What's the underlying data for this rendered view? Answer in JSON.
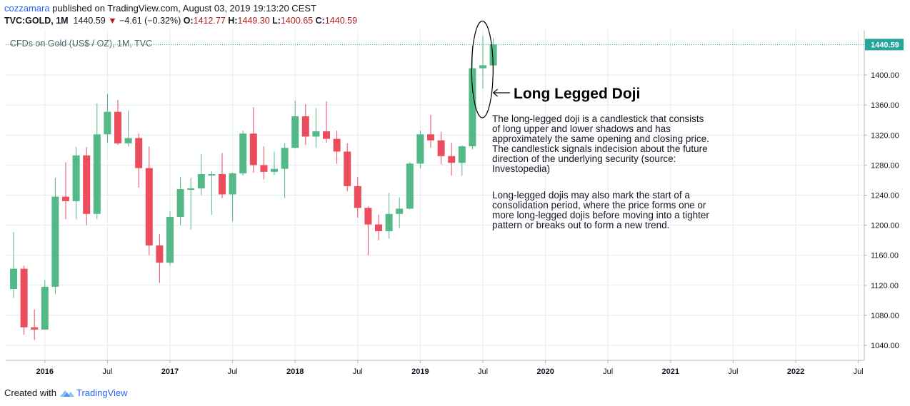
{
  "header": {
    "author": "cozzamara",
    "published_text": " published on TradingView.com, August 03, 2019 19:13:20 CEST",
    "symbol": "TVC:GOLD, 1M",
    "last": "1440.59",
    "change_arrow": "▼",
    "change": "−4.61 (−0.32%)",
    "o_label": "O:",
    "o_val": "1412.77",
    "h_label": "H:",
    "h_val": "1449.30",
    "l_label": "L:",
    "l_val": "1400.65",
    "c_label": "C:",
    "c_val": "1440.59"
  },
  "footer": {
    "prefix": "Created with",
    "brand": "TradingView"
  },
  "colors": {
    "up": "#53b987",
    "down": "#eb4d5c",
    "price_line": "#26a69a",
    "grid": "#e1ecf2"
  },
  "chart_data": {
    "type": "candlestick",
    "title": "CFDs on Gold (US$ / OZ), 1M, TVC",
    "ylim": [
      1020,
      1460
    ],
    "y_ticks": [
      1040,
      1080,
      1120,
      1160,
      1200,
      1240,
      1280,
      1320,
      1360,
      1400
    ],
    "last_price": 1440.59,
    "last_price_label": "1440.59",
    "x_ticks": [
      {
        "label": "2016",
        "index": 3,
        "bold": true
      },
      {
        "label": "Jul",
        "index": 9,
        "bold": false
      },
      {
        "label": "2017",
        "index": 15,
        "bold": true
      },
      {
        "label": "Jul",
        "index": 21,
        "bold": false
      },
      {
        "label": "2018",
        "index": 27,
        "bold": true
      },
      {
        "label": "Jul",
        "index": 33,
        "bold": false
      },
      {
        "label": "2019",
        "index": 39,
        "bold": true
      },
      {
        "label": "Jul",
        "index": 45,
        "bold": false
      },
      {
        "label": "2020",
        "index": 51,
        "bold": true
      },
      {
        "label": "Jul",
        "index": 57,
        "bold": false
      },
      {
        "label": "2021",
        "index": 63,
        "bold": true
      },
      {
        "label": "Jul",
        "index": 69,
        "bold": false
      },
      {
        "label": "2022",
        "index": 75,
        "bold": true
      },
      {
        "label": "Jul",
        "index": 81,
        "bold": false
      }
    ],
    "candles": [
      {
        "date": "2015-10",
        "o": 1115,
        "h": 1191,
        "l": 1103,
        "c": 1142
      },
      {
        "date": "2015-11",
        "o": 1142,
        "h": 1146,
        "l": 1054,
        "c": 1064
      },
      {
        "date": "2015-12",
        "o": 1064,
        "h": 1088,
        "l": 1047,
        "c": 1061
      },
      {
        "date": "2016-01",
        "o": 1061,
        "h": 1127,
        "l": 1061,
        "c": 1118
      },
      {
        "date": "2016-02",
        "o": 1118,
        "h": 1263,
        "l": 1108,
        "c": 1238
      },
      {
        "date": "2016-03",
        "o": 1238,
        "h": 1284,
        "l": 1208,
        "c": 1232
      },
      {
        "date": "2016-04",
        "o": 1232,
        "h": 1304,
        "l": 1208,
        "c": 1293
      },
      {
        "date": "2016-05",
        "o": 1293,
        "h": 1304,
        "l": 1200,
        "c": 1215
      },
      {
        "date": "2016-06",
        "o": 1215,
        "h": 1362,
        "l": 1208,
        "c": 1321
      },
      {
        "date": "2016-07",
        "o": 1321,
        "h": 1375,
        "l": 1310,
        "c": 1351
      },
      {
        "date": "2016-08",
        "o": 1351,
        "h": 1367,
        "l": 1307,
        "c": 1309
      },
      {
        "date": "2016-09",
        "o": 1309,
        "h": 1353,
        "l": 1305,
        "c": 1316
      },
      {
        "date": "2016-10",
        "o": 1316,
        "h": 1322,
        "l": 1250,
        "c": 1276
      },
      {
        "date": "2016-11",
        "o": 1276,
        "h": 1305,
        "l": 1160,
        "c": 1173
      },
      {
        "date": "2016-12",
        "o": 1173,
        "h": 1188,
        "l": 1123,
        "c": 1150
      },
      {
        "date": "2017-01",
        "o": 1150,
        "h": 1219,
        "l": 1146,
        "c": 1211
      },
      {
        "date": "2017-02",
        "o": 1211,
        "h": 1264,
        "l": 1200,
        "c": 1248
      },
      {
        "date": "2017-03",
        "o": 1248,
        "h": 1263,
        "l": 1194,
        "c": 1249
      },
      {
        "date": "2017-04",
        "o": 1249,
        "h": 1295,
        "l": 1240,
        "c": 1268
      },
      {
        "date": "2017-05",
        "o": 1268,
        "h": 1272,
        "l": 1214,
        "c": 1268
      },
      {
        "date": "2017-06",
        "o": 1268,
        "h": 1296,
        "l": 1236,
        "c": 1241
      },
      {
        "date": "2017-07",
        "o": 1241,
        "h": 1270,
        "l": 1205,
        "c": 1269
      },
      {
        "date": "2017-08",
        "o": 1269,
        "h": 1326,
        "l": 1266,
        "c": 1322
      },
      {
        "date": "2017-09",
        "o": 1322,
        "h": 1357,
        "l": 1270,
        "c": 1280
      },
      {
        "date": "2017-10",
        "o": 1280,
        "h": 1305,
        "l": 1261,
        "c": 1271
      },
      {
        "date": "2017-11",
        "o": 1271,
        "h": 1298,
        "l": 1267,
        "c": 1275
      },
      {
        "date": "2017-12",
        "o": 1275,
        "h": 1309,
        "l": 1236,
        "c": 1303
      },
      {
        "date": "2018-01",
        "o": 1303,
        "h": 1366,
        "l": 1302,
        "c": 1345
      },
      {
        "date": "2018-02",
        "o": 1345,
        "h": 1361,
        "l": 1307,
        "c": 1318
      },
      {
        "date": "2018-03",
        "o": 1318,
        "h": 1356,
        "l": 1303,
        "c": 1325
      },
      {
        "date": "2018-04",
        "o": 1325,
        "h": 1365,
        "l": 1310,
        "c": 1315
      },
      {
        "date": "2018-05",
        "o": 1315,
        "h": 1326,
        "l": 1282,
        "c": 1298
      },
      {
        "date": "2018-06",
        "o": 1298,
        "h": 1309,
        "l": 1245,
        "c": 1252
      },
      {
        "date": "2018-07",
        "o": 1252,
        "h": 1264,
        "l": 1210,
        "c": 1223
      },
      {
        "date": "2018-08",
        "o": 1223,
        "h": 1225,
        "l": 1160,
        "c": 1201
      },
      {
        "date": "2018-09",
        "o": 1201,
        "h": 1214,
        "l": 1180,
        "c": 1192
      },
      {
        "date": "2018-10",
        "o": 1192,
        "h": 1243,
        "l": 1182,
        "c": 1215
      },
      {
        "date": "2018-11",
        "o": 1215,
        "h": 1237,
        "l": 1196,
        "c": 1222
      },
      {
        "date": "2018-12",
        "o": 1222,
        "h": 1284,
        "l": 1221,
        "c": 1282
      },
      {
        "date": "2019-01",
        "o": 1282,
        "h": 1326,
        "l": 1276,
        "c": 1321
      },
      {
        "date": "2019-02",
        "o": 1321,
        "h": 1347,
        "l": 1303,
        "c": 1313
      },
      {
        "date": "2019-03",
        "o": 1313,
        "h": 1324,
        "l": 1281,
        "c": 1292
      },
      {
        "date": "2019-04",
        "o": 1292,
        "h": 1310,
        "l": 1266,
        "c": 1283
      },
      {
        "date": "2019-05",
        "o": 1283,
        "h": 1306,
        "l": 1266,
        "c": 1305
      },
      {
        "date": "2019-06",
        "o": 1305,
        "h": 1439,
        "l": 1301,
        "c": 1409
      },
      {
        "date": "2019-07",
        "o": 1409,
        "h": 1452,
        "l": 1382,
        "c": 1413
      },
      {
        "date": "2019-08",
        "o": 1412.77,
        "h": 1449.3,
        "l": 1400.65,
        "c": 1440.59
      }
    ],
    "annotation": {
      "title": "Long Legged Doji",
      "paragraphs": [
        "The long-legged doji is a candlestick that consists of long upper and lower shadows and has approximately the same opening and closing price. The candlestick signals indecision about the future direction of the underlying security (source: Investopedia)",
        "Long-legged dojis may also mark the start of a consolidation period, where the price forms one or more long-legged dojis before moving into a tighter pattern or breaks out to form a new trend."
      ]
    }
  }
}
